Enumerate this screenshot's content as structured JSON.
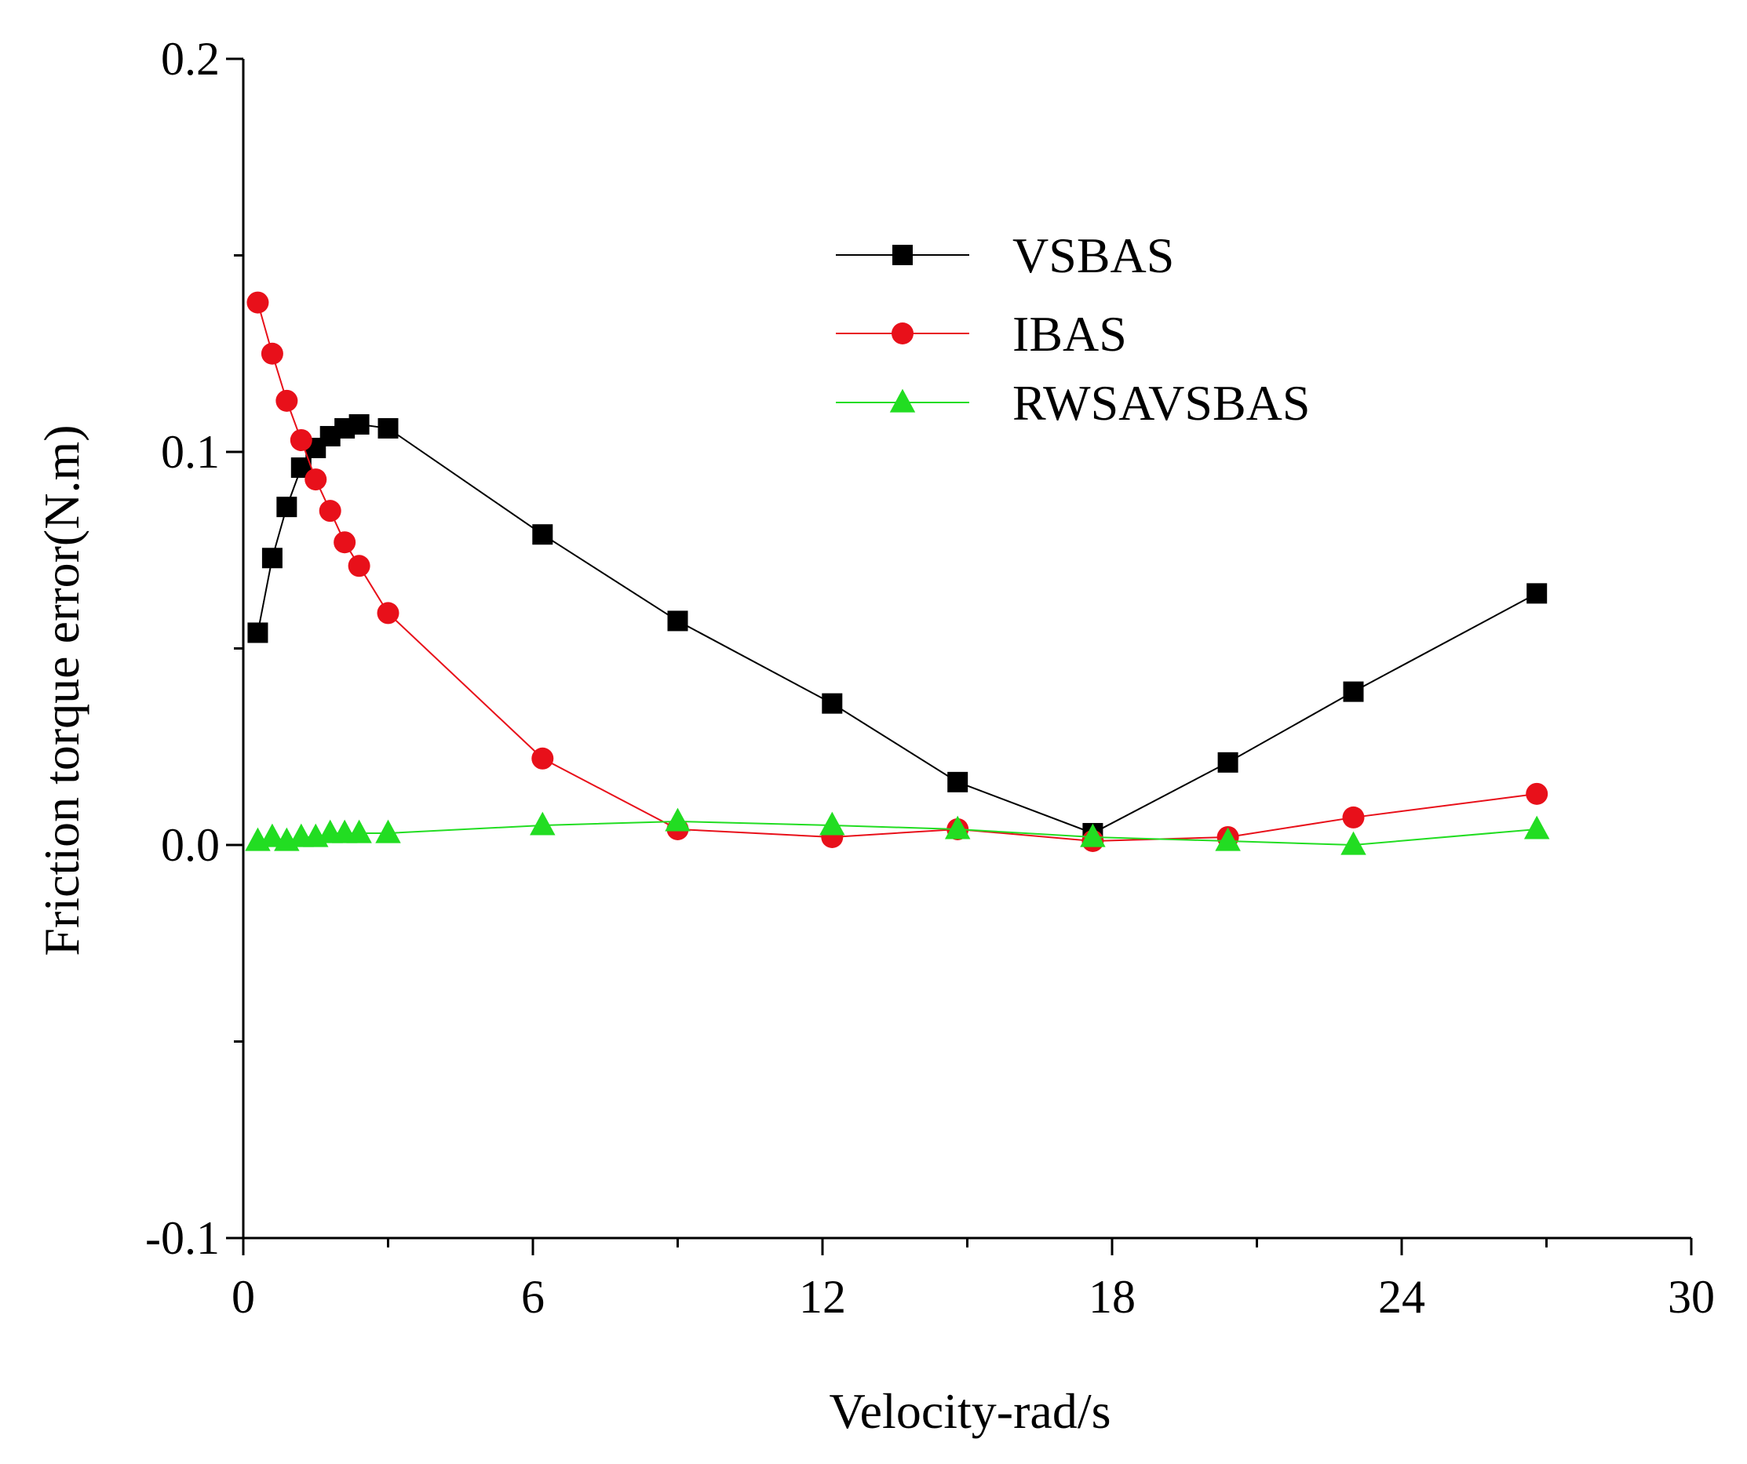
{
  "chart_data": {
    "type": "line",
    "title": "",
    "xlabel": "Velocity-rad/s",
    "ylabel": "Friction torque error(N.m)",
    "xlim": [
      0,
      30
    ],
    "ylim": [
      -0.1,
      0.2
    ],
    "xticks": [
      0,
      6,
      12,
      18,
      24,
      30
    ],
    "xtick_labels": [
      "0",
      "6",
      "12",
      "18",
      "24",
      "30"
    ],
    "yticks": [
      -0.1,
      0.0,
      0.1,
      0.2
    ],
    "ytick_labels": [
      "-0.1",
      "0.0",
      "0.1",
      "0.2"
    ],
    "grid": false,
    "legend_position": "upper-center",
    "series": [
      {
        "name": "VSBAS",
        "color": "#000000",
        "marker": "square",
        "x": [
          0.3,
          0.6,
          0.9,
          1.2,
          1.5,
          1.8,
          2.1,
          2.4,
          3.0,
          6.2,
          9.0,
          12.2,
          14.8,
          17.6,
          20.4,
          23.0,
          26.8
        ],
        "y": [
          0.054,
          0.073,
          0.086,
          0.096,
          0.101,
          0.104,
          0.106,
          0.107,
          0.106,
          0.079,
          0.057,
          0.036,
          0.016,
          0.003,
          0.021,
          0.039,
          0.064
        ]
      },
      {
        "name": "IBAS",
        "color": "#e8101a",
        "marker": "circle",
        "x": [
          0.3,
          0.6,
          0.9,
          1.2,
          1.5,
          1.8,
          2.1,
          2.4,
          3.0,
          6.2,
          9.0,
          12.2,
          14.8,
          17.6,
          20.4,
          23.0,
          26.8
        ],
        "y": [
          0.138,
          0.125,
          0.113,
          0.103,
          0.093,
          0.085,
          0.077,
          0.071,
          0.059,
          0.022,
          0.004,
          0.002,
          0.004,
          0.001,
          0.002,
          0.007,
          0.013
        ]
      },
      {
        "name": "RWSAVSBAS",
        "color": "#22dd22",
        "marker": "triangle",
        "x": [
          0.3,
          0.6,
          0.9,
          1.2,
          1.5,
          1.8,
          2.1,
          2.4,
          3.0,
          6.2,
          9.0,
          12.2,
          14.8,
          17.6,
          20.4,
          23.0,
          26.8
        ],
        "y": [
          0.001,
          0.002,
          0.001,
          0.002,
          0.002,
          0.003,
          0.003,
          0.003,
          0.003,
          0.005,
          0.006,
          0.005,
          0.004,
          0.002,
          0.001,
          0.0,
          0.004
        ]
      }
    ]
  }
}
